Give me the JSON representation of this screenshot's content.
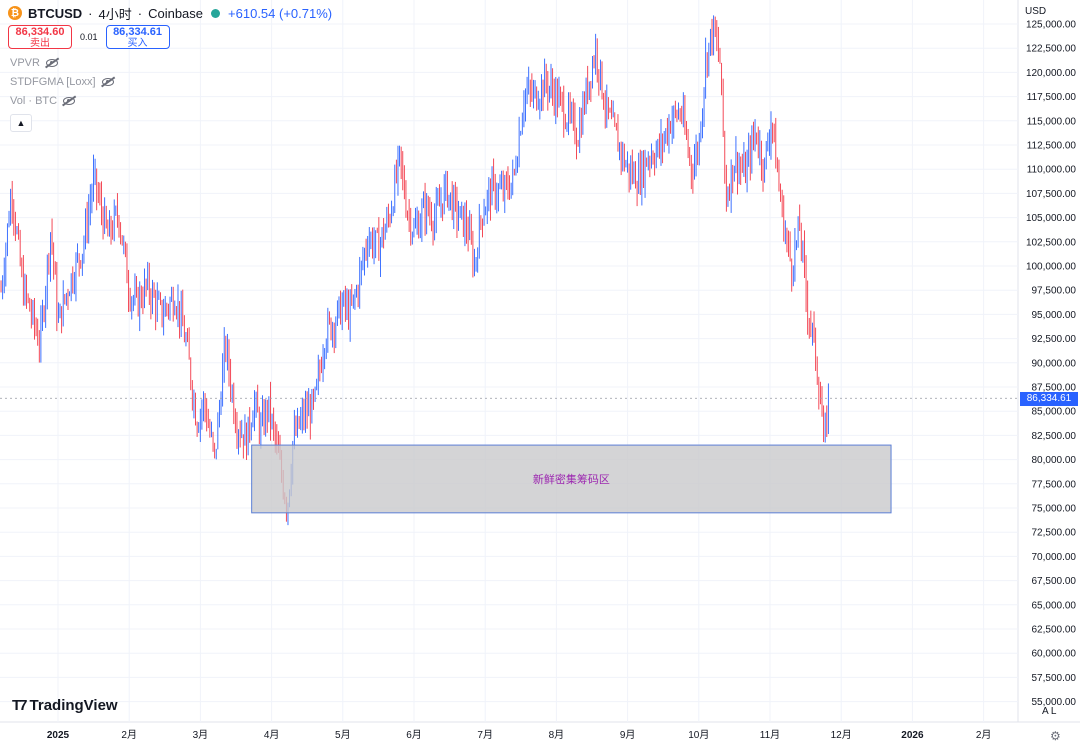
{
  "header": {
    "coin_icon": "bitcoin-icon",
    "symbol": "BTCUSD",
    "sep1": "·",
    "interval": "4小时",
    "sep2": "·",
    "exchange": "Coinbase",
    "status_color": "#26a69a",
    "change": "+610.54 (+0.71%)"
  },
  "trade": {
    "sell_price": "86,334.60",
    "sell_label": "卖出",
    "spread": "0.01",
    "buy_price": "86,334.61",
    "buy_label": "买入"
  },
  "indicators": [
    {
      "label": "VPVR",
      "icon": "eye-off-icon"
    },
    {
      "label": "STDFGMA [Loxx]",
      "icon": "eye-off-icon"
    },
    {
      "label": "Vol · BTC",
      "icon": "eye-off-icon"
    }
  ],
  "collapse_icon": "chevron-up-icon",
  "currency": "USD",
  "current_price_label": "86,334.61",
  "branding": "TradingView",
  "bottom_controls": "A  L",
  "settings_icon": "gear-icon",
  "colors": {
    "up": "#2962ff",
    "down": "#f23645",
    "zone_fill": "#c9c9cc",
    "zone_border": "#5b7fd6",
    "zone_text": "#9c27b0",
    "grid": "#f0f3fa"
  },
  "chart_data": {
    "type": "line",
    "title": "BTCUSD · 4小时 · Coinbase",
    "ylim": [
      55000,
      125000
    ],
    "y_ticks": [
      "125,000.00",
      "122,500.00",
      "120,000.00",
      "117,500.00",
      "115,000.00",
      "112,500.00",
      "110,000.00",
      "107,500.00",
      "105,000.00",
      "102,500.00",
      "100,000.00",
      "97,500.00",
      "95,000.00",
      "92,500.00",
      "90,000.00",
      "87,500.00",
      "85,000.00",
      "82,500.00",
      "80,000.00",
      "77,500.00",
      "75,000.00",
      "72,500.00",
      "70,000.00",
      "67,500.00",
      "65,000.00",
      "62,500.00",
      "60,000.00",
      "57,500.00",
      "55,000.00"
    ],
    "x_ticks": [
      {
        "label": "2025",
        "t": 1.0
      },
      {
        "label": "2月",
        "t": 2.0
      },
      {
        "label": "3月",
        "t": 3.0
      },
      {
        "label": "4月",
        "t": 4.0
      },
      {
        "label": "5月",
        "t": 5.0
      },
      {
        "label": "6月",
        "t": 6.0
      },
      {
        "label": "7月",
        "t": 7.0
      },
      {
        "label": "8月",
        "t": 8.0
      },
      {
        "label": "9月",
        "t": 9.0
      },
      {
        "label": "10月",
        "t": 10.0
      },
      {
        "label": "11月",
        "t": 11.0
      },
      {
        "label": "12月",
        "t": 12.0
      },
      {
        "label": "2026",
        "t": 13.0
      },
      {
        "label": "2月",
        "t": 14.0
      }
    ],
    "price_path": [
      [
        0.2,
        97500
      ],
      [
        0.35,
        108000
      ],
      [
        0.5,
        98000
      ],
      [
        0.75,
        92000
      ],
      [
        0.9,
        104000
      ],
      [
        1.0,
        94000
      ],
      [
        1.15,
        98000
      ],
      [
        1.35,
        102000
      ],
      [
        1.5,
        109000
      ],
      [
        1.7,
        103000
      ],
      [
        1.85,
        105500
      ],
      [
        2.0,
        97500
      ],
      [
        2.1,
        96000
      ],
      [
        2.25,
        98000
      ],
      [
        2.45,
        95000
      ],
      [
        2.65,
        97000
      ],
      [
        2.8,
        92000
      ],
      [
        2.95,
        84000
      ],
      [
        3.05,
        86000
      ],
      [
        3.2,
        80000
      ],
      [
        3.35,
        92000
      ],
      [
        3.5,
        84000
      ],
      [
        3.65,
        82000
      ],
      [
        3.75,
        86000
      ],
      [
        3.85,
        83000
      ],
      [
        3.95,
        85500
      ],
      [
        4.05,
        82000
      ],
      [
        4.15,
        78000
      ],
      [
        4.22,
        75000
      ],
      [
        4.3,
        82000
      ],
      [
        4.45,
        84500
      ],
      [
        4.6,
        85500
      ],
      [
        4.75,
        93000
      ],
      [
        4.9,
        94500
      ],
      [
        5.0,
        96000
      ],
      [
        5.1,
        95000
      ],
      [
        5.2,
        97500
      ],
      [
        5.35,
        103000
      ],
      [
        5.5,
        102000
      ],
      [
        5.65,
        105000
      ],
      [
        5.8,
        111000
      ],
      [
        5.9,
        106000
      ],
      [
        6.0,
        103500
      ],
      [
        6.15,
        106000
      ],
      [
        6.3,
        105000
      ],
      [
        6.45,
        108000
      ],
      [
        6.6,
        105500
      ],
      [
        6.75,
        104000
      ],
      [
        6.85,
        100000
      ],
      [
        6.95,
        105500
      ],
      [
        7.1,
        108000
      ],
      [
        7.25,
        107500
      ],
      [
        7.4,
        109000
      ],
      [
        7.55,
        118000
      ],
      [
        7.7,
        117500
      ],
      [
        7.85,
        119000
      ],
      [
        8.0,
        117500
      ],
      [
        8.15,
        115500
      ],
      [
        8.3,
        113500
      ],
      [
        8.45,
        119000
      ],
      [
        8.55,
        122500
      ],
      [
        8.7,
        116000
      ],
      [
        8.85,
        113000
      ],
      [
        9.0,
        110000
      ],
      [
        9.15,
        109000
      ],
      [
        9.3,
        111500
      ],
      [
        9.45,
        112000
      ],
      [
        9.6,
        115000
      ],
      [
        9.75,
        116000
      ],
      [
        9.9,
        110000
      ],
      [
        10.0,
        112500
      ],
      [
        10.1,
        121500
      ],
      [
        10.2,
        124500
      ],
      [
        10.3,
        121000
      ],
      [
        10.38,
        107000
      ],
      [
        10.5,
        111000
      ],
      [
        10.65,
        109500
      ],
      [
        10.8,
        114000
      ],
      [
        10.92,
        110000
      ],
      [
        11.02,
        115500
      ],
      [
        11.12,
        108500
      ],
      [
        11.2,
        104000
      ],
      [
        11.3,
        100000
      ],
      [
        11.42,
        104000
      ],
      [
        11.52,
        96000
      ],
      [
        11.62,
        92000
      ],
      [
        11.72,
        85500
      ],
      [
        11.76,
        81000
      ],
      [
        11.82,
        86500
      ]
    ],
    "annotation_zone": {
      "label": "新鲜密集筹码区",
      "x_start": 3.72,
      "x_end": 12.7,
      "y_low": 74500,
      "y_high": 81500
    },
    "current_price": 86334.61,
    "grid": true
  }
}
